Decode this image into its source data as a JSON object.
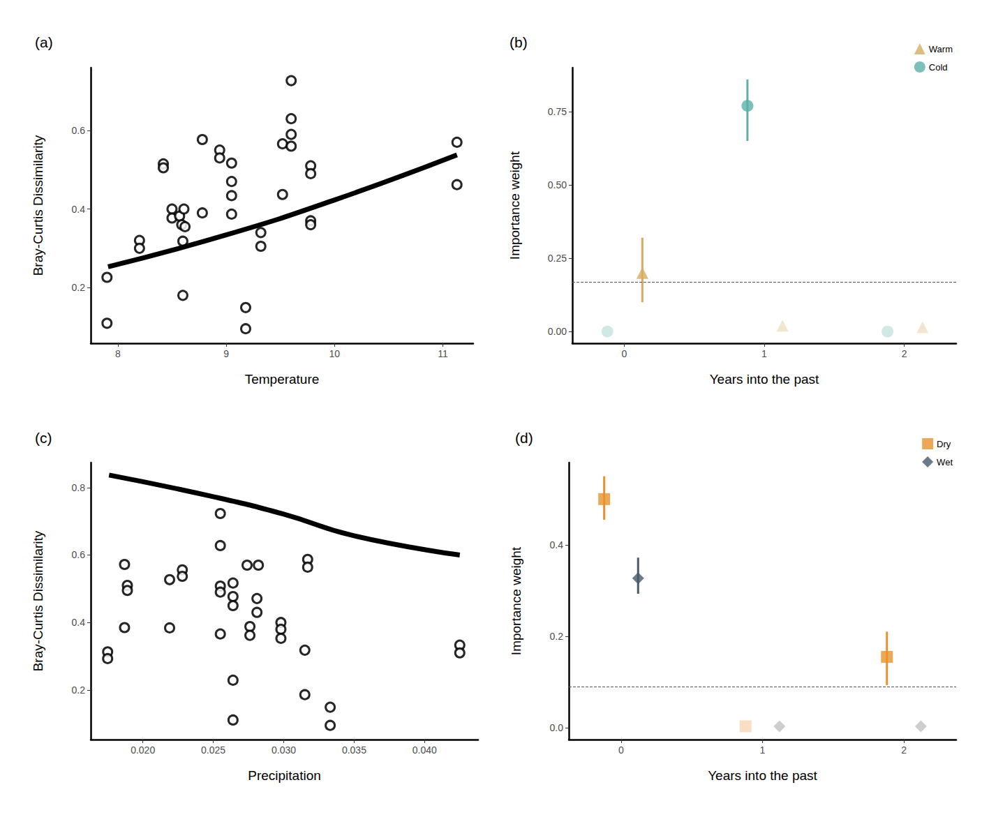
{
  "chart_data": [
    {
      "type": "scatter",
      "title": "(a)",
      "x_label": "Temperature",
      "y_label": "Bray-Curtis Dissimilarity",
      "xlim": [
        7.75,
        11.28
      ],
      "ylim": [
        0.058,
        0.76
      ],
      "xticks": [
        8,
        9,
        10,
        11
      ],
      "yticks": [
        0.2,
        0.4,
        0.6
      ],
      "grid": false,
      "series": [
        {
          "type": "scatter",
          "marker": "circle_open",
          "color": "#000000",
          "x": [
            7.9,
            7.9,
            8.2,
            8.2,
            8.42,
            8.42,
            8.5,
            8.5,
            8.57,
            8.59,
            8.61,
            8.62,
            8.6,
            8.6,
            8.78,
            8.78,
            8.94,
            8.94,
            9.05,
            9.05,
            9.05,
            9.05,
            9.18,
            9.18,
            9.32,
            9.32,
            9.52,
            9.52,
            9.6,
            9.6,
            9.6,
            9.6,
            9.78,
            9.78,
            9.78,
            9.78,
            11.13,
            11.13
          ],
          "values": [
            0.226,
            0.109,
            0.32,
            0.3,
            0.515,
            0.505,
            0.4,
            0.377,
            0.382,
            0.36,
            0.4,
            0.355,
            0.318,
            0.18,
            0.577,
            0.39,
            0.55,
            0.53,
            0.517,
            0.47,
            0.434,
            0.387,
            0.149,
            0.095,
            0.34,
            0.305,
            0.566,
            0.437,
            0.727,
            0.63,
            0.59,
            0.56,
            0.51,
            0.49,
            0.37,
            0.36,
            0.57,
            0.462
          ]
        },
        {
          "type": "line",
          "color": "#000000",
          "x": [
            7.91,
            9,
            10,
            11.13
          ],
          "values": [
            0.253,
            0.334,
            0.423,
            0.538
          ]
        }
      ]
    },
    {
      "type": "scatter",
      "title": "(b)",
      "x_label": "Years into the past",
      "y_label": "Importance weight",
      "xlim": [
        -0.37,
        2.37
      ],
      "ylim": [
        -0.04,
        0.9
      ],
      "xticks": [
        0,
        1,
        2
      ],
      "yticks": [
        {
          "value": 0,
          "label": "0.00"
        },
        {
          "value": 0.25,
          "label": "0.25"
        },
        {
          "value": 0.5,
          "label": "0.50"
        },
        {
          "value": 0.75,
          "label": "0.75"
        }
      ],
      "grid": false,
      "legend": "top-right",
      "threshold": 0.167,
      "series": [
        {
          "name": "Warm",
          "marker": "triangle",
          "color": "#d4ad62",
          "colors": [
            "#d4ad62",
            "#efe0c4",
            "#efe0c4"
          ],
          "x": [
            0.13,
            1.13,
            2.13
          ],
          "values": [
            0.2,
            0.02,
            0.015
          ],
          "error_low": [
            0.1,
            null,
            null
          ],
          "error_high": [
            0.32,
            null,
            null
          ]
        },
        {
          "name": "Cold",
          "marker": "circle",
          "color": "#5bb1a8",
          "colors": [
            "#c5e3df",
            "#5bb1a8",
            "#c5e3df"
          ],
          "x": [
            -0.12,
            0.88,
            1.88
          ],
          "values": [
            0.0,
            0.77,
            0.0
          ],
          "error_low": [
            null,
            0.65,
            null
          ],
          "error_high": [
            null,
            0.86,
            null
          ]
        }
      ]
    },
    {
      "type": "scatter",
      "title": "(c)",
      "x_label": "Precipitation",
      "y_label": "Bray-Curtis Dissimilarity",
      "xlim": [
        0.0163,
        0.0438
      ],
      "ylim": [
        0.053,
        0.874
      ],
      "xticks": [
        {
          "value": 0.02,
          "label": "0.020"
        },
        {
          "value": 0.025,
          "label": "0.025"
        },
        {
          "value": 0.03,
          "label": "0.030"
        },
        {
          "value": 0.035,
          "label": "0.035"
        },
        {
          "value": 0.04,
          "label": "0.040"
        }
      ],
      "yticks": [
        0.2,
        0.4,
        0.6,
        0.8
      ],
      "grid": false,
      "series": [
        {
          "type": "scatter",
          "marker": "circle_open",
          "color": "#000000",
          "x": [
            0.0175,
            0.0175,
            0.0187,
            0.0189,
            0.0189,
            0.0187,
            0.0219,
            0.0219,
            0.0228,
            0.0228,
            0.0255,
            0.0255,
            0.0255,
            0.0255,
            0.0255,
            0.0264,
            0.0264,
            0.0264,
            0.0264,
            0.0264,
            0.0274,
            0.0276,
            0.0276,
            0.0282,
            0.0281,
            0.0281,
            0.0298,
            0.0298,
            0.0298,
            0.0317,
            0.0317,
            0.0315,
            0.0315,
            0.0333,
            0.0333,
            0.0425,
            0.0425
          ],
          "values": [
            0.313,
            0.293,
            0.572,
            0.51,
            0.495,
            0.385,
            0.527,
            0.384,
            0.556,
            0.537,
            0.723,
            0.628,
            0.508,
            0.49,
            0.366,
            0.517,
            0.477,
            0.45,
            0.229,
            0.111,
            0.57,
            0.388,
            0.362,
            0.57,
            0.471,
            0.43,
            0.4,
            0.38,
            0.353,
            0.587,
            0.564,
            0.318,
            0.186,
            0.149,
            0.095,
            0.333,
            0.31
          ]
        },
        {
          "type": "line",
          "color": "#000000",
          "x": [
            0.0176,
            0.025,
            0.03,
            0.035,
            0.0425
          ],
          "values": [
            0.837,
            0.773,
            0.721,
            0.657,
            0.6
          ]
        }
      ]
    },
    {
      "type": "scatter",
      "title": "(d)",
      "x_label": "Years into the past",
      "y_label": "Importance weight",
      "xlim": [
        -0.37,
        2.37
      ],
      "ylim": [
        -0.026,
        0.58
      ],
      "xticks": [
        0,
        1,
        2
      ],
      "yticks": [
        {
          "value": 0,
          "label": "0.0"
        },
        {
          "value": 0.2,
          "label": "0.2"
        },
        {
          "value": 0.4,
          "label": "0.4"
        }
      ],
      "grid": false,
      "legend": "top-right",
      "threshold": 0.085,
      "series": [
        {
          "name": "Dry",
          "marker": "square",
          "color": "#e8922d",
          "colors": [
            "#e8922d",
            "#f7d5b6",
            "#e8922d"
          ],
          "x": [
            -0.12,
            0.88,
            1.88
          ],
          "values": [
            0.5,
            0.003,
            0.155
          ],
          "error_low": [
            0.455,
            null,
            0.093
          ],
          "error_high": [
            0.55,
            null,
            0.21
          ]
        },
        {
          "name": "Wet",
          "marker": "diamond",
          "color": "#475a6a",
          "colors": [
            "#475a6a",
            "#bec3c6",
            "#bec3c6"
          ],
          "x": [
            0.12,
            1.12,
            2.12
          ],
          "values": [
            0.327,
            0.003,
            0.003
          ],
          "error_low": [
            0.293,
            null,
            null
          ],
          "error_high": [
            0.372,
            null,
            null
          ]
        }
      ]
    }
  ]
}
